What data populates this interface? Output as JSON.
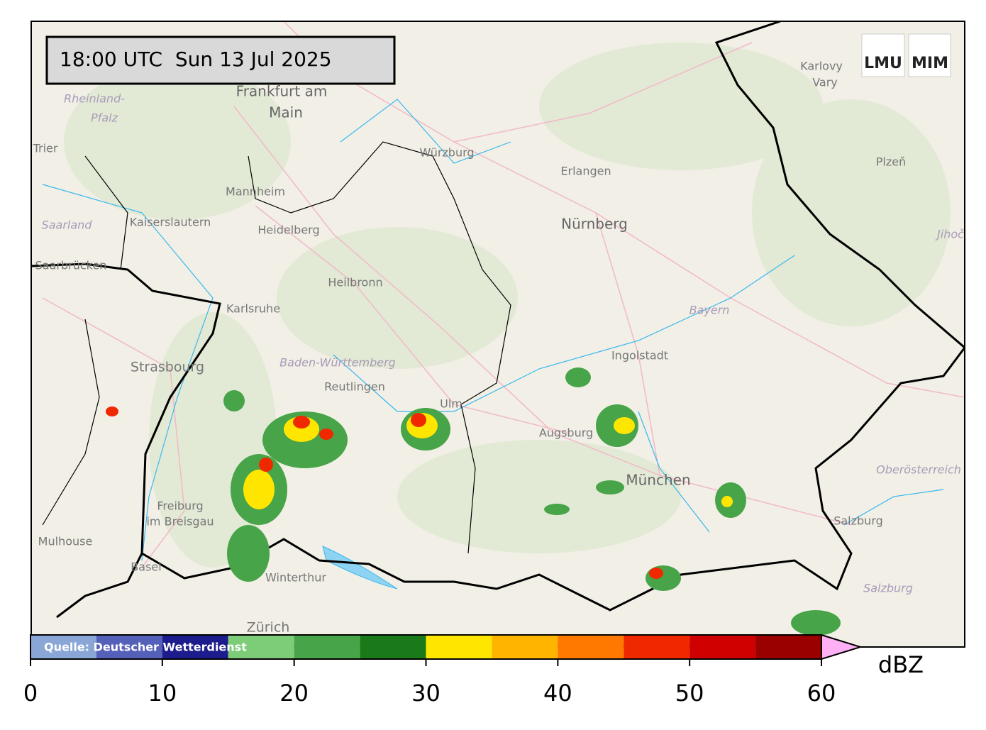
{
  "header": {
    "timestamp": "18:00 UTC  Sun 13 Jul 2025",
    "logos": [
      "LMU",
      "MIM"
    ]
  },
  "map": {
    "labels": [
      "Rheinland-",
      "Pfalz",
      "Frankfurt am",
      "Main",
      "Trier",
      "Würzburg",
      "Erlangen",
      "Plzeň",
      "Mannheim",
      "Kaiserslautern",
      "Saarland",
      "Heidelberg",
      "Nürnberg",
      "Jihoč",
      "Saarbrücken",
      "Heilbronn",
      "Karlsruhe",
      "Bayern",
      "Ingolstadt",
      "Strasbourg",
      "Baden-Württemberg",
      "Reutlingen",
      "Ulm",
      "Augsburg",
      "München",
      "Oberösterreich",
      "Freiburg",
      "im Breisgau",
      "Mulhouse",
      "Salzburg",
      "Salzburg",
      "Basel",
      "Winterthur",
      "Zürich",
      "Karlovy",
      "Vary"
    ],
    "source": "Quelle: Deutscher Wetterdienst"
  },
  "colorbar": {
    "label": "dBZ",
    "bounds": [
      0,
      5,
      10,
      15,
      20,
      25,
      30,
      35,
      40,
      45,
      50,
      55,
      60
    ],
    "colors": [
      "#8aa6d6",
      "#5560b8",
      "#1c1c8c",
      "#7ccc78",
      "#48a448",
      "#1a7a1a",
      "#ffe600",
      "#ffb400",
      "#ff7800",
      "#f02800",
      "#d00000",
      "#9a0000"
    ],
    "extend_color": "#ffb0f4",
    "ticks": [
      0,
      10,
      20,
      30,
      40,
      50,
      60
    ]
  }
}
